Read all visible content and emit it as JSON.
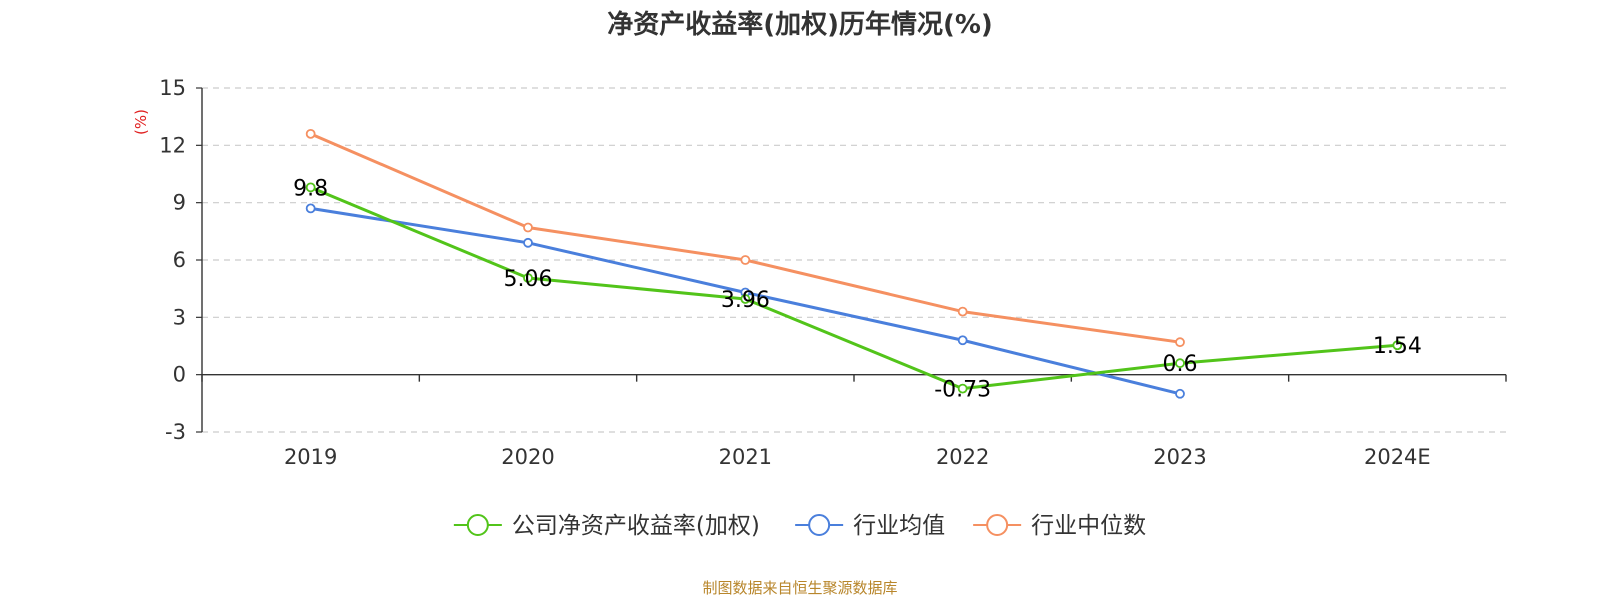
{
  "source_note": "制图数据来自恒生聚源数据库",
  "chart_data": {
    "type": "line",
    "title": "净资产收益率(加权)历年情况(%)",
    "ylabel": "(%)",
    "categories": [
      "2019",
      "2020",
      "2021",
      "2022",
      "2023",
      "2024E"
    ],
    "ylim": [
      -3,
      15
    ],
    "yticks": [
      15,
      12,
      9,
      6,
      3,
      0,
      -3
    ],
    "grid": true,
    "legend_position": "bottom",
    "series": [
      {
        "name": "公司净资产收益率(加权)",
        "color": "#52c41a",
        "values": [
          9.8,
          5.06,
          3.96,
          -0.73,
          0.6,
          1.54
        ],
        "labels": [
          "9.8",
          "5.06",
          "3.96",
          "-0.73",
          "0.6",
          "1.54"
        ]
      },
      {
        "name": "行业均值",
        "color": "#4a7fdc",
        "values": [
          8.7,
          6.9,
          4.3,
          1.8,
          -1.0,
          null
        ]
      },
      {
        "name": "行业中位数",
        "color": "#f59061",
        "values": [
          12.6,
          7.7,
          6.0,
          3.3,
          1.7,
          null
        ]
      }
    ]
  }
}
